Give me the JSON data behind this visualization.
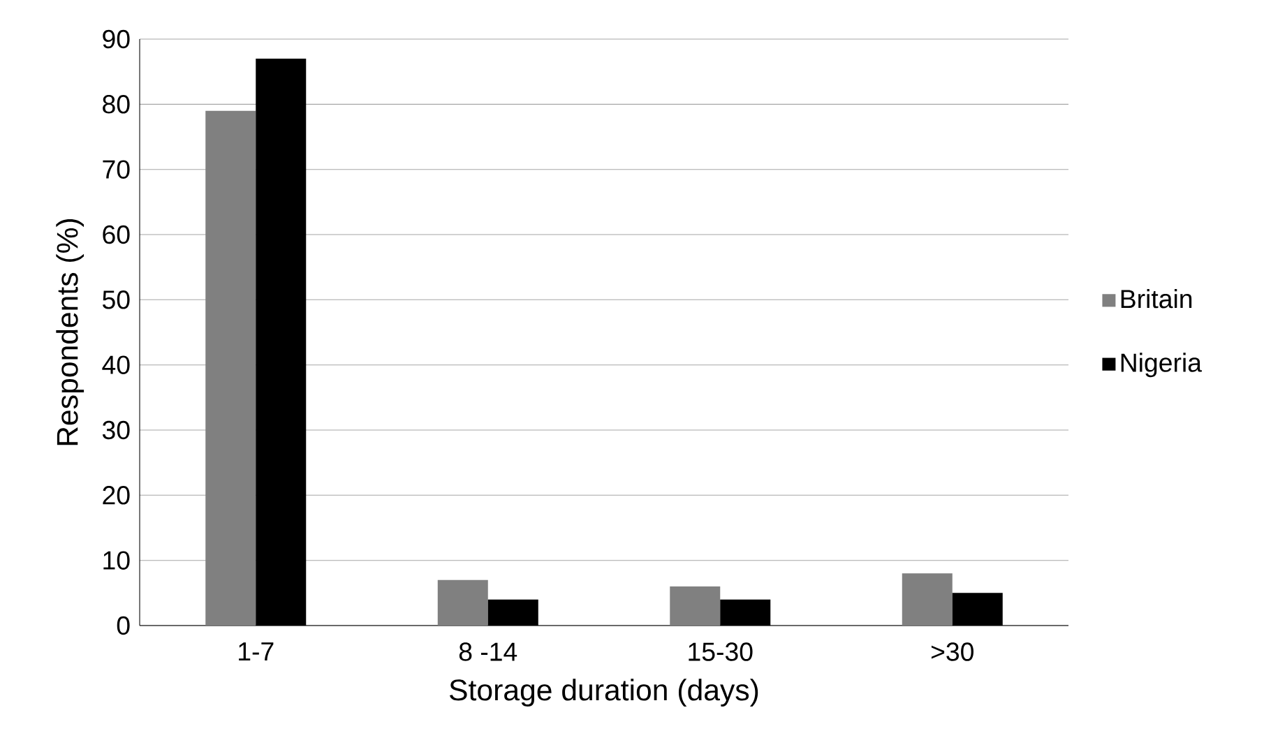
{
  "chart_data": {
    "type": "bar",
    "xlabel": "Storage duration (days)",
    "ylabel": "Respondents (%)",
    "categories": [
      "1-7",
      "8 -14",
      "15-30",
      ">30"
    ],
    "series": [
      {
        "name": "Britain",
        "color": "#808080",
        "values": [
          79,
          7,
          6,
          8
        ]
      },
      {
        "name": "Nigeria",
        "color": "#000000",
        "values": [
          87,
          4,
          4,
          5
        ]
      }
    ],
    "ylim": [
      0,
      90
    ],
    "yticks": [
      0,
      10,
      20,
      30,
      40,
      50,
      60,
      70,
      80,
      90
    ],
    "grid": "y",
    "legend": "right"
  }
}
